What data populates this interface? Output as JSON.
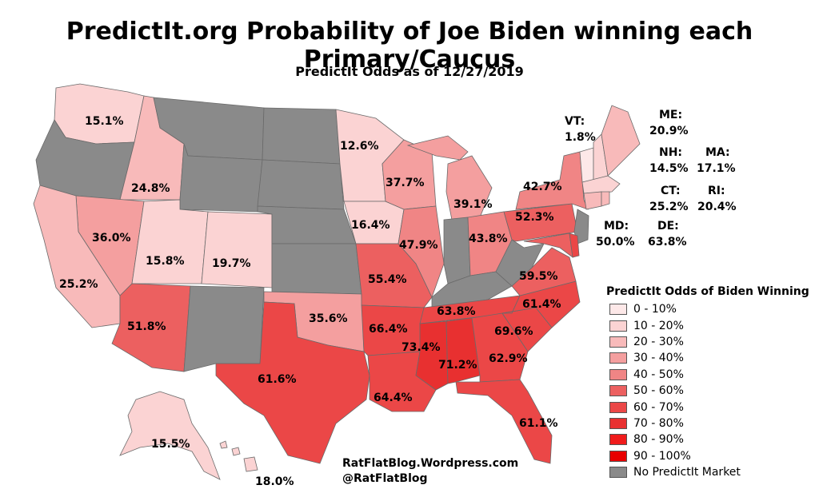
{
  "title": "PredictIt.org Probability of Joe Biden winning each Primary/Caucus",
  "subtitle": "PredictIt Odds as of 12/27/2019",
  "legend": {
    "title": "PredictIt Odds of Biden Winning",
    "items": [
      {
        "label": "0 - 10%",
        "color": "#fde8e8"
      },
      {
        "label": "10 - 20%",
        "color": "#fbd3d3"
      },
      {
        "label": "20 - 30%",
        "color": "#f8baba"
      },
      {
        "label": "30 - 40%",
        "color": "#f49f9f"
      },
      {
        "label": "40 - 50%",
        "color": "#f08585"
      },
      {
        "label": "50 - 60%",
        "color": "#ec6060"
      },
      {
        "label": "60 - 70%",
        "color": "#eb4747"
      },
      {
        "label": "70 - 80%",
        "color": "#e83030"
      },
      {
        "label": "80 - 90%",
        "color": "#f01c1c"
      },
      {
        "label": "90 - 100%",
        "color": "#e80000"
      },
      {
        "label": "No PredictIt Market",
        "color": "#8a8a8a"
      }
    ]
  },
  "states": {
    "WA": {
      "value": "15.1%",
      "color": "#fbd3d3"
    },
    "OR": {
      "value": "",
      "color": "#8a8a8a"
    },
    "ID": {
      "value": "24.8%",
      "color": "#f8baba"
    },
    "MT": {
      "value": "",
      "color": "#8a8a8a"
    },
    "WY": {
      "value": "",
      "color": "#8a8a8a"
    },
    "NV": {
      "value": "36.0%",
      "color": "#f49f9f"
    },
    "CA": {
      "value": "25.2%",
      "color": "#f8baba"
    },
    "UT": {
      "value": "15.8%",
      "color": "#fbd3d3"
    },
    "CO": {
      "value": "19.7%",
      "color": "#fbd3d3"
    },
    "AZ": {
      "value": "51.8%",
      "color": "#ec6060"
    },
    "NM": {
      "value": "",
      "color": "#8a8a8a"
    },
    "ND": {
      "value": "",
      "color": "#8a8a8a"
    },
    "SD": {
      "value": "",
      "color": "#8a8a8a"
    },
    "NE": {
      "value": "",
      "color": "#8a8a8a"
    },
    "KS": {
      "value": "",
      "color": "#8a8a8a"
    },
    "OK": {
      "value": "35.6%",
      "color": "#f49f9f"
    },
    "TX": {
      "value": "61.6%",
      "color": "#eb4747"
    },
    "MN": {
      "value": "12.6%",
      "color": "#fbd3d3"
    },
    "IA": {
      "value": "16.4%",
      "color": "#fbd3d3"
    },
    "MO": {
      "value": "55.4%",
      "color": "#ec6060"
    },
    "AR": {
      "value": "66.4%",
      "color": "#eb4747"
    },
    "LA": {
      "value": "64.4%",
      "color": "#eb4747"
    },
    "WI": {
      "value": "37.7%",
      "color": "#f49f9f"
    },
    "IL": {
      "value": "47.9%",
      "color": "#f08585"
    },
    "MI": {
      "value": "39.1%",
      "color": "#f49f9f"
    },
    "IN": {
      "value": "",
      "color": "#8a8a8a"
    },
    "OH": {
      "value": "43.8%",
      "color": "#f08585"
    },
    "KY": {
      "value": "",
      "color": "#8a8a8a"
    },
    "TN": {
      "value": "63.8%",
      "color": "#eb4747"
    },
    "MS": {
      "value": "73.4%",
      "color": "#e83030"
    },
    "AL": {
      "value": "71.2%",
      "color": "#e83030"
    },
    "GA": {
      "value": "62.9%",
      "color": "#eb4747"
    },
    "FL": {
      "value": "61.1%",
      "color": "#eb4747"
    },
    "SC": {
      "value": "69.6%",
      "color": "#eb4747"
    },
    "NC": {
      "value": "61.4%",
      "color": "#eb4747"
    },
    "VA": {
      "value": "59.5%",
      "color": "#ec6060"
    },
    "WV": {
      "value": "",
      "color": "#8a8a8a"
    },
    "PA": {
      "value": "52.3%",
      "color": "#ec6060"
    },
    "NY": {
      "value": "42.7%",
      "color": "#f08585"
    },
    "NJ": {
      "value": "",
      "color": "#8a8a8a"
    },
    "MD": {
      "value": "50.0%",
      "color": "#ec6060"
    },
    "DE": {
      "value": "63.8%",
      "color": "#eb4747"
    },
    "VT": {
      "value": "1.8%",
      "color": "#fde8e8"
    },
    "NH": {
      "value": "14.5%",
      "color": "#fbd3d3"
    },
    "ME": {
      "value": "20.9%",
      "color": "#f8baba"
    },
    "MA": {
      "value": "17.1%",
      "color": "#fbd3d3"
    },
    "CT": {
      "value": "25.2%",
      "color": "#f8baba"
    },
    "RI": {
      "value": "20.4%",
      "color": "#f8baba"
    },
    "AK": {
      "value": "15.5%",
      "color": "#fbd3d3"
    },
    "HI": {
      "value": "18.0%",
      "color": "#fbd3d3"
    }
  },
  "callouts": {
    "VT": "VT:",
    "ME": "ME:",
    "NH": "NH:",
    "MA": "MA:",
    "CT": "CT:",
    "RI": "RI:",
    "MD": "MD:",
    "DE": "DE:"
  },
  "credits": {
    "line1": "RatFlatBlog.Wordpress.com",
    "line2": "@RatFlatBlog"
  }
}
